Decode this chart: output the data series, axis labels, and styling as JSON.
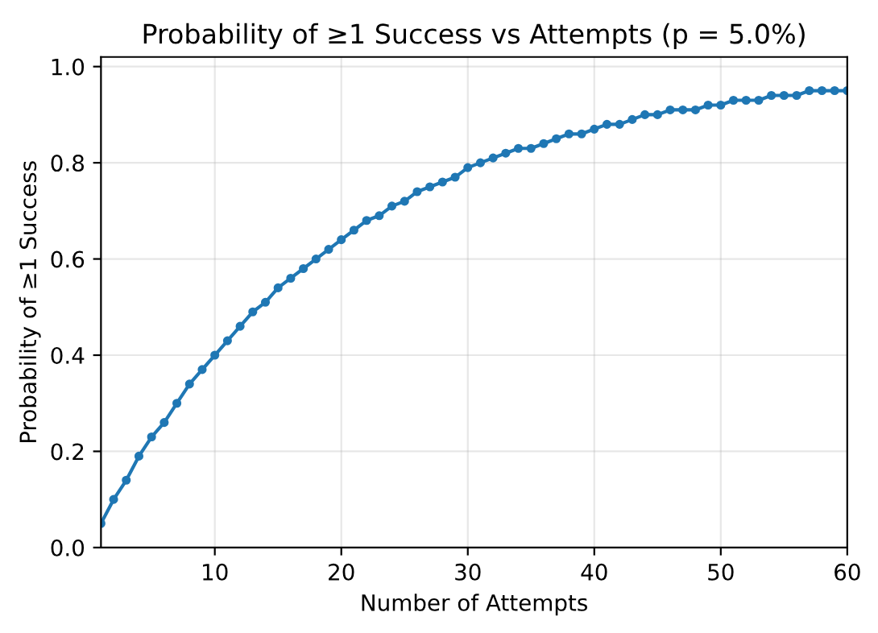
{
  "chart_data": {
    "type": "line",
    "title": "Probability of ≥1 Success vs Attempts (p = 5.0%)",
    "xlabel": "Number of Attempts",
    "ylabel": "Probability of ≥1 Success",
    "x": [
      1,
      2,
      3,
      4,
      5,
      6,
      7,
      8,
      9,
      10,
      11,
      12,
      13,
      14,
      15,
      16,
      17,
      18,
      19,
      20,
      21,
      22,
      23,
      24,
      25,
      26,
      27,
      28,
      29,
      30,
      31,
      32,
      33,
      34,
      35,
      36,
      37,
      38,
      39,
      40,
      41,
      42,
      43,
      44,
      45,
      46,
      47,
      48,
      49,
      50,
      51,
      52,
      53,
      54,
      55,
      56,
      57,
      58,
      59,
      60
    ],
    "series": [
      {
        "color": "#1f77b4",
        "values": [
          0.05,
          0.1,
          0.14,
          0.19,
          0.23,
          0.26,
          0.3,
          0.34,
          0.37,
          0.4,
          0.43,
          0.46,
          0.49,
          0.51,
          0.54,
          0.56,
          0.58,
          0.6,
          0.62,
          0.64,
          0.66,
          0.68,
          0.69,
          0.71,
          0.72,
          0.74,
          0.75,
          0.76,
          0.77,
          0.79,
          0.8,
          0.81,
          0.82,
          0.83,
          0.83,
          0.84,
          0.85,
          0.86,
          0.86,
          0.87,
          0.88,
          0.88,
          0.89,
          0.9,
          0.9,
          0.91,
          0.91,
          0.91,
          0.92,
          0.92,
          0.93,
          0.93,
          0.93,
          0.94,
          0.94,
          0.94,
          0.95,
          0.95,
          0.95,
          0.95
        ]
      }
    ],
    "xlim": [
      1,
      60
    ],
    "xticks": [
      10,
      20,
      30,
      40,
      50,
      60
    ],
    "ylim": [
      0,
      1.02
    ],
    "yticks": [
      {
        "value": 0,
        "label": "0.0"
      },
      {
        "value": 0.2,
        "label": "0.2"
      },
      {
        "value": 0.4,
        "label": "0.4"
      },
      {
        "value": 0.6,
        "label": "0.6"
      },
      {
        "value": 0.8,
        "label": "0.8"
      },
      {
        "value": 1.0,
        "label": "1.0"
      }
    ],
    "grid": true,
    "marker": "circle",
    "line_style": "solid"
  }
}
